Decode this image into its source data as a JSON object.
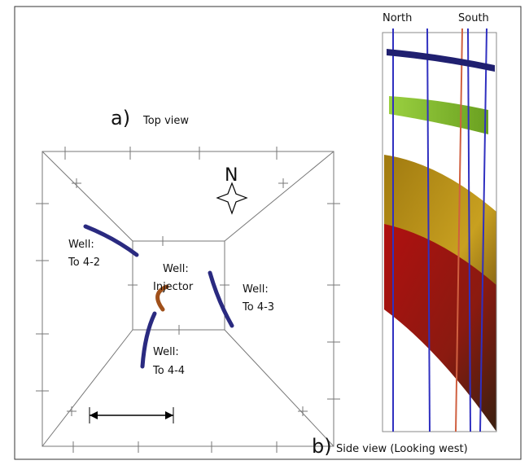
{
  "panel_a": {
    "label": "a)",
    "title": "Top view",
    "compass": "N",
    "wells": [
      {
        "line1": "Well:",
        "line2": "To 4-2"
      },
      {
        "line1": "Well:",
        "line2": "Injector"
      },
      {
        "line1": "Well:",
        "line2": "To 4-3"
      },
      {
        "line1": "Well:",
        "line2": "To 4-4"
      }
    ]
  },
  "panel_b": {
    "label": "b)",
    "title": "Side view (Looking west)",
    "north": "North",
    "south": "South"
  }
}
